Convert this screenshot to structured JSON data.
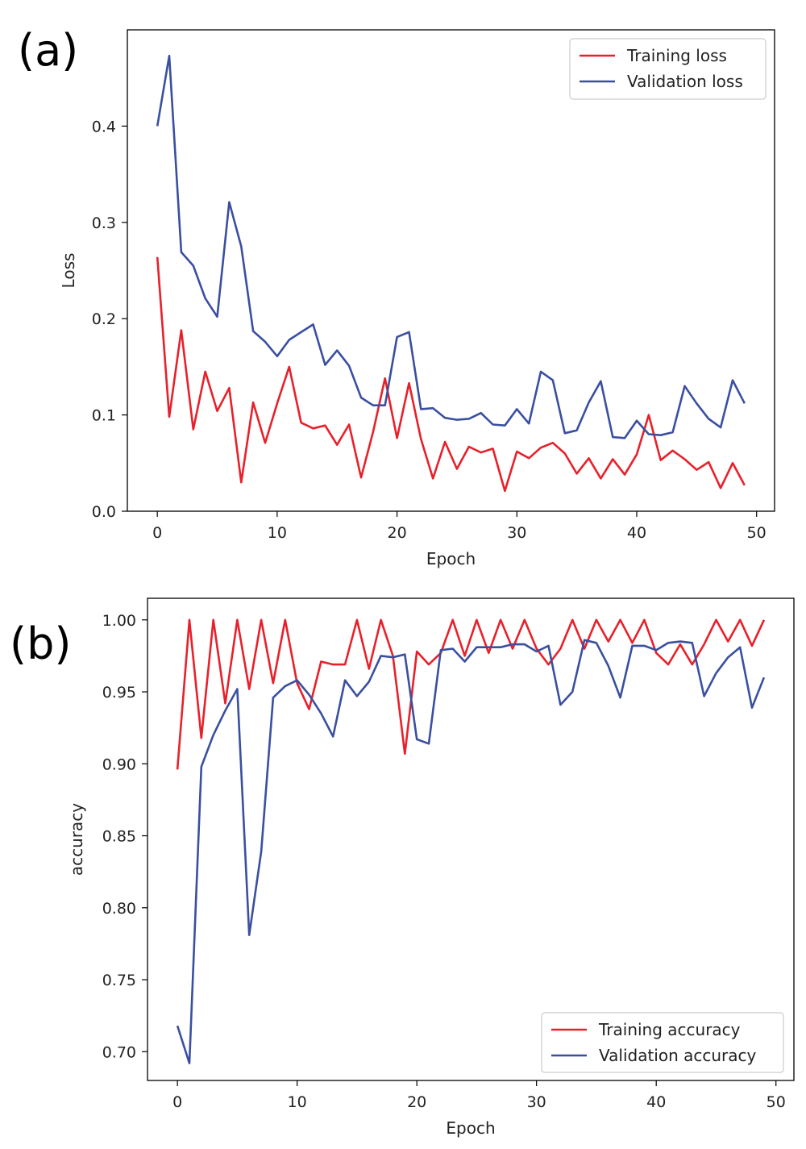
{
  "panels": {
    "a": "(a)",
    "b": "(b)"
  },
  "colors": {
    "training": "#e8202a",
    "validation": "#3a4fa0"
  },
  "chart_data": [
    {
      "type": "line",
      "panel": "(a)",
      "xlabel": "Epoch",
      "ylabel": "Loss",
      "xlim": [
        -2.5,
        51.5
      ],
      "ylim": [
        -0.0,
        0.5
      ],
      "xticks": [
        0,
        10,
        20,
        30,
        40,
        50
      ],
      "yticks": [
        0.0,
        0.1,
        0.2,
        0.3,
        0.4
      ],
      "ytick_labels": [
        "0.0",
        "0.1",
        "0.2",
        "0.3",
        "0.4"
      ],
      "legend_position": "top-right",
      "grid": false,
      "x": [
        0,
        1,
        2,
        3,
        4,
        5,
        6,
        7,
        8,
        9,
        10,
        11,
        12,
        13,
        14,
        15,
        16,
        17,
        18,
        19,
        20,
        21,
        22,
        23,
        24,
        25,
        26,
        27,
        28,
        29,
        30,
        31,
        32,
        33,
        34,
        35,
        36,
        37,
        38,
        39,
        40,
        41,
        42,
        43,
        44,
        45,
        46,
        47,
        48,
        49
      ],
      "series": [
        {
          "name": "Training loss",
          "color": "#e8202a",
          "values": [
            0.264,
            0.098,
            0.188,
            0.085,
            0.145,
            0.104,
            0.128,
            0.03,
            0.113,
            0.071,
            0.112,
            0.15,
            0.092,
            0.086,
            0.089,
            0.069,
            0.09,
            0.035,
            0.082,
            0.138,
            0.076,
            0.133,
            0.075,
            0.034,
            0.072,
            0.044,
            0.067,
            0.061,
            0.065,
            0.021,
            0.062,
            0.055,
            0.066,
            0.071,
            0.06,
            0.039,
            0.055,
            0.034,
            0.054,
            0.038,
            0.059,
            0.1,
            0.053,
            0.063,
            0.054,
            0.043,
            0.051,
            0.024,
            0.05,
            0.027
          ]
        },
        {
          "name": "Validation loss",
          "color": "#3a4fa0",
          "values": [
            0.4,
            0.473,
            0.269,
            0.255,
            0.221,
            0.202,
            0.321,
            0.275,
            0.187,
            0.176,
            0.161,
            0.178,
            0.186,
            0.194,
            0.152,
            0.167,
            0.151,
            0.118,
            0.11,
            0.11,
            0.181,
            0.186,
            0.106,
            0.107,
            0.097,
            0.095,
            0.096,
            0.102,
            0.09,
            0.089,
            0.106,
            0.091,
            0.145,
            0.136,
            0.081,
            0.084,
            0.113,
            0.135,
            0.077,
            0.076,
            0.094,
            0.08,
            0.079,
            0.082,
            0.13,
            0.112,
            0.096,
            0.087,
            0.136,
            0.112
          ]
        }
      ]
    },
    {
      "type": "line",
      "panel": "(b)",
      "xlabel": "Epoch",
      "ylabel": "accuracy",
      "xlim": [
        -2.5,
        51.5
      ],
      "ylim": [
        0.68,
        1.015
      ],
      "xticks": [
        0,
        10,
        20,
        30,
        40,
        50
      ],
      "yticks": [
        0.7,
        0.75,
        0.8,
        0.85,
        0.9,
        0.95,
        1.0
      ],
      "ytick_labels": [
        "0.70",
        "0.75",
        "0.80",
        "0.85",
        "0.90",
        "0.95",
        "1.00"
      ],
      "legend_position": "bottom-right",
      "grid": false,
      "x": [
        0,
        1,
        2,
        3,
        4,
        5,
        6,
        7,
        8,
        9,
        10,
        11,
        12,
        13,
        14,
        15,
        16,
        17,
        18,
        19,
        20,
        21,
        22,
        23,
        24,
        25,
        26,
        27,
        28,
        29,
        30,
        31,
        32,
        33,
        34,
        35,
        36,
        37,
        38,
        39,
        40,
        41,
        42,
        43,
        44,
        45,
        46,
        47,
        48,
        49
      ],
      "series": [
        {
          "name": "Training accuracy",
          "color": "#e8202a",
          "values": [
            0.896,
            1.0,
            0.918,
            1.0,
            0.942,
            1.0,
            0.952,
            1.0,
            0.956,
            1.0,
            0.956,
            0.938,
            0.971,
            0.969,
            0.969,
            1.0,
            0.966,
            1.0,
            0.975,
            0.907,
            0.978,
            0.969,
            0.977,
            1.0,
            0.975,
            1.0,
            0.977,
            1.0,
            0.98,
            1.0,
            0.98,
            0.969,
            0.98,
            1.0,
            0.98,
            1.0,
            0.985,
            1.0,
            0.984,
            1.0,
            0.977,
            0.969,
            0.983,
            0.969,
            0.983,
            1.0,
            0.985,
            1.0,
            0.982,
            1.0
          ]
        },
        {
          "name": "Validation accuracy",
          "color": "#3a4fa0",
          "values": [
            0.718,
            0.692,
            0.898,
            0.92,
            0.937,
            0.952,
            0.781,
            0.839,
            0.946,
            0.954,
            0.958,
            0.948,
            0.935,
            0.919,
            0.958,
            0.947,
            0.957,
            0.975,
            0.974,
            0.976,
            0.917,
            0.914,
            0.979,
            0.98,
            0.971,
            0.981,
            0.981,
            0.981,
            0.983,
            0.983,
            0.978,
            0.982,
            0.941,
            0.95,
            0.986,
            0.984,
            0.968,
            0.946,
            0.982,
            0.982,
            0.979,
            0.984,
            0.985,
            0.984,
            0.947,
            0.963,
            0.974,
            0.981,
            0.939,
            0.96
          ]
        }
      ]
    }
  ]
}
